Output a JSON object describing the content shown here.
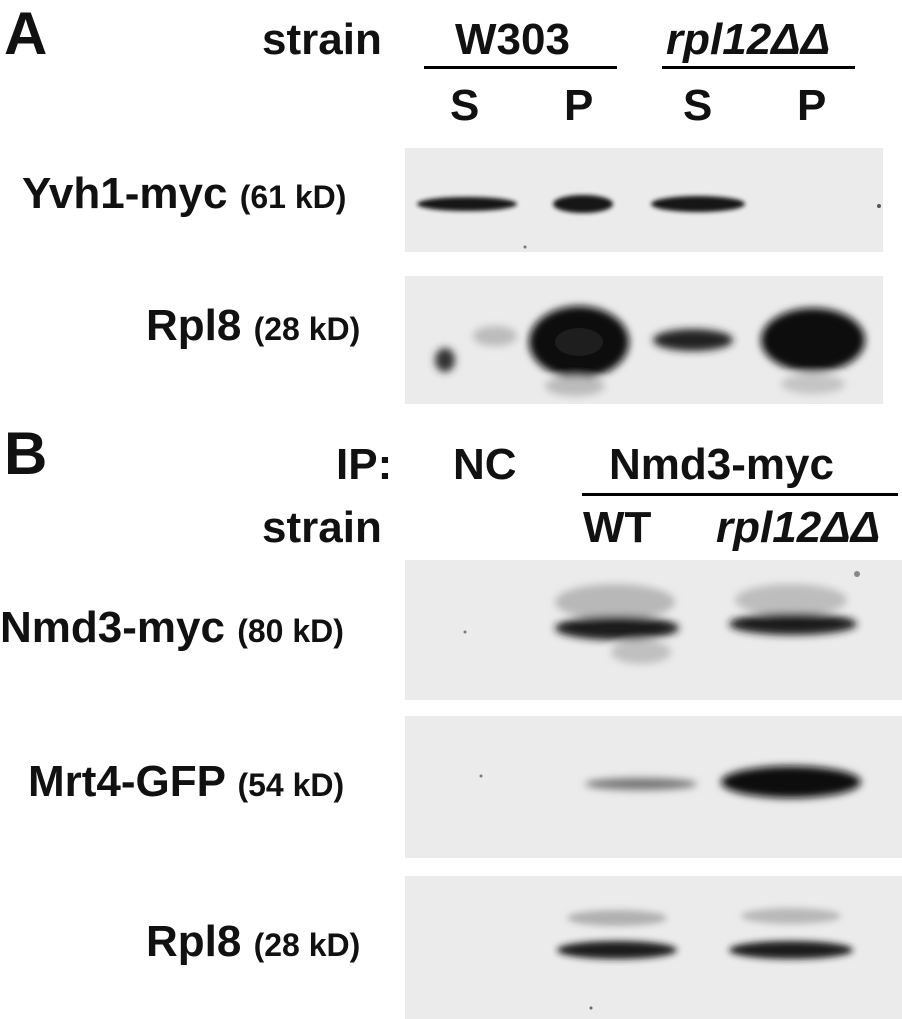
{
  "panel_a": {
    "letter": "A",
    "strain_label": "strain",
    "group1": "W303",
    "group2": "rpl12ΔΔ",
    "lanes": [
      "S",
      "P",
      "S",
      "P"
    ],
    "blots": [
      {
        "protein": "Yvh1-myc",
        "mw": "(61 kD)"
      },
      {
        "protein": "Rpl8",
        "mw": "(28 kD)"
      }
    ]
  },
  "panel_b": {
    "letter": "B",
    "ip_label": "IP:",
    "nc_label": "NC",
    "ip_group": "Nmd3-myc",
    "strain_label": "strain",
    "strain_wt": "WT",
    "strain_mut": "rpl12ΔΔ",
    "blots": [
      {
        "protein": "Nmd3-myc",
        "mw": "(80 kD)"
      },
      {
        "protein": "Mrt4-GFP",
        "mw": "(54 kD)"
      },
      {
        "protein": "Rpl8",
        "mw": "(28 kD)"
      }
    ]
  },
  "colors": {
    "band": "#141414",
    "membrane": "#ebebeb"
  }
}
